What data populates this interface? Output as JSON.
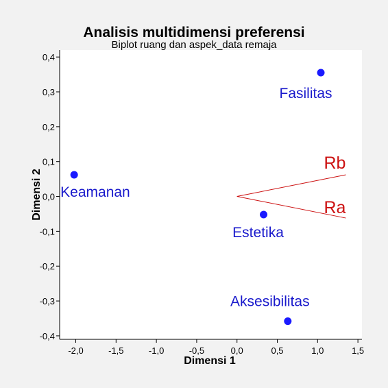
{
  "colors": {
    "background": "#f2f2f2",
    "plot_background": "#ffffff",
    "points": "#1a1aff",
    "point_labels": "#1a1acc",
    "vectors": "#cc1111",
    "axis": "#000000"
  },
  "chart_data": {
    "type": "scatter",
    "title": "Analisis multidimensi preferensi",
    "subtitle": "Biplot ruang dan aspek_data remaja",
    "xlabel": "Dimensi 1",
    "ylabel": "Dimensi 2",
    "xlim": [
      -2.2,
      1.55
    ],
    "ylim": [
      -0.41,
      0.42
    ],
    "xticks": [
      -2.0,
      -1.5,
      -1.0,
      -0.5,
      0.0,
      0.5,
      1.0,
      1.5
    ],
    "xtick_labels": [
      "-2,0",
      "-1,5",
      "-1,0",
      "-0,5",
      "0,0",
      "0,5",
      "1,0",
      "1,5"
    ],
    "yticks": [
      -0.4,
      -0.3,
      -0.2,
      -0.1,
      0.0,
      0.1,
      0.2,
      0.3,
      0.4
    ],
    "ytick_labels": [
      "-0,4",
      "-0,3",
      "-0,2",
      "-0,1",
      "0,0",
      "0,1",
      "0,2",
      "0,3",
      "0,4"
    ],
    "grid": false,
    "points": [
      {
        "label": "Fasilitas",
        "x": 1.04,
        "y": 0.355
      },
      {
        "label": "Keamanan",
        "x": -2.02,
        "y": 0.062
      },
      {
        "label": "Estetika",
        "x": 0.33,
        "y": -0.052
      },
      {
        "label": "Aksesibilitas",
        "x": 0.63,
        "y": -0.358
      }
    ],
    "vectors": [
      {
        "label": "Rb",
        "x": 1.35,
        "y": 0.062
      },
      {
        "label": "Ra",
        "x": 1.35,
        "y": -0.062
      }
    ]
  }
}
